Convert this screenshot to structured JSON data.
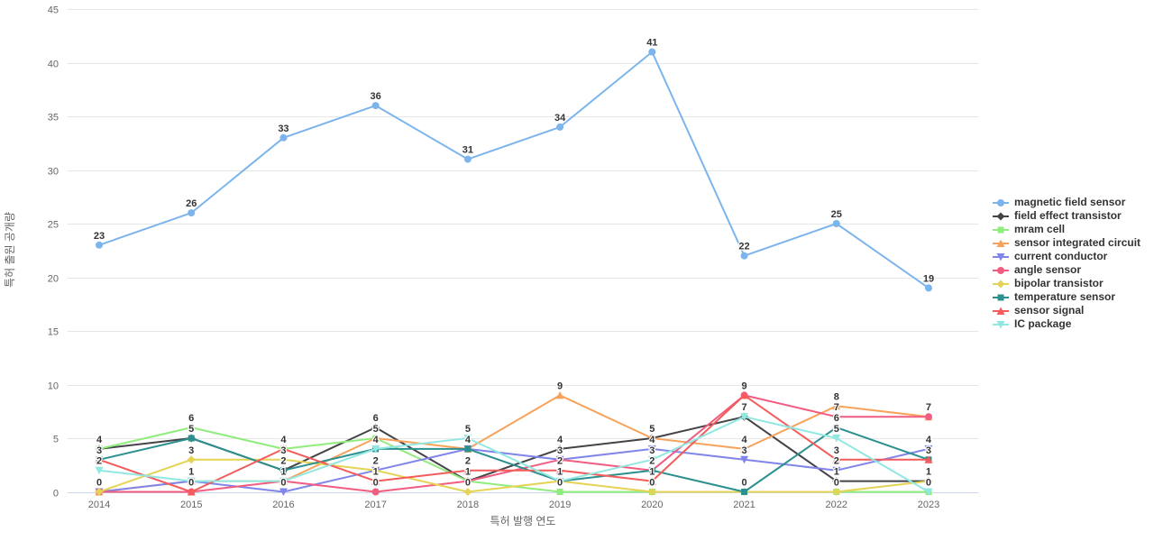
{
  "chart_data": {
    "type": "line",
    "title": "",
    "xlabel": "특허 발행 연도",
    "ylabel": "특허 출원 공개량",
    "ylim": [
      0,
      45
    ],
    "yticks": [
      0,
      5,
      10,
      15,
      20,
      25,
      30,
      35,
      40,
      45
    ],
    "grid": "horizontal",
    "legend_position": "right",
    "categories": [
      "2014",
      "2015",
      "2016",
      "2017",
      "2018",
      "2019",
      "2020",
      "2021",
      "2022",
      "2023"
    ],
    "series": [
      {
        "name": "magnetic field sensor",
        "color": "#7cb5ec",
        "marker": "circle",
        "values": [
          23,
          26,
          33,
          36,
          31,
          34,
          41,
          22,
          25,
          19
        ]
      },
      {
        "name": "field effect transistor",
        "color": "#434348",
        "marker": "diamond",
        "values": [
          4,
          5,
          2,
          6,
          1,
          4,
          5,
          7,
          1,
          1
        ]
      },
      {
        "name": "mram cell",
        "color": "#90ed7d",
        "marker": "square",
        "values": [
          4,
          6,
          4,
          5,
          1,
          0,
          0,
          0,
          0,
          0
        ]
      },
      {
        "name": "sensor integrated circuit",
        "color": "#f7a35c",
        "marker": "triangle",
        "values": [
          0,
          1,
          1,
          5,
          4,
          9,
          5,
          4,
          8,
          7
        ]
      },
      {
        "name": "current conductor",
        "color": "#8085e9",
        "marker": "triangle-down",
        "values": [
          0,
          1,
          0,
          2,
          4,
          3,
          4,
          3,
          2,
          4
        ]
      },
      {
        "name": "angle sensor",
        "color": "#f15c80",
        "marker": "circle",
        "values": [
          0,
          0,
          1,
          0,
          1,
          3,
          2,
          9,
          7,
          7
        ]
      },
      {
        "name": "bipolar transistor",
        "color": "#e4d354",
        "marker": "diamond",
        "values": [
          0,
          3,
          3,
          2,
          0,
          1,
          0,
          0,
          0,
          1
        ]
      },
      {
        "name": "temperature sensor",
        "color": "#2b908f",
        "marker": "square",
        "values": [
          3,
          5,
          2,
          4,
          4,
          1,
          2,
          0,
          6,
          3
        ]
      },
      {
        "name": "sensor signal",
        "color": "#f45b5b",
        "marker": "triangle",
        "values": [
          3,
          0,
          4,
          1,
          2,
          2,
          1,
          9,
          3,
          3
        ]
      },
      {
        "name": "IC package",
        "color": "#91e8e1",
        "marker": "triangle-down",
        "values": [
          2,
          1,
          1,
          4,
          5,
          1,
          3,
          7,
          5,
          0
        ]
      }
    ]
  },
  "colors": {
    "gridline": "#e6e6e6",
    "axis_line": "#ccd6eb",
    "tick_text": "#666666",
    "data_label": "#333333",
    "legend_text": "#333333"
  }
}
